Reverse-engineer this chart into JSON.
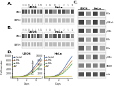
{
  "title_U2OS": "U2OS",
  "title_HeLa": "HeLa",
  "row_labels_A": [
    "ERK1",
    "GAPDH"
  ],
  "row_labels_B": [
    "ERK1",
    "GAPDH"
  ],
  "row_labels_C": [
    "IKK-a",
    "p-IKK-a/b",
    "p-IKKb",
    "IKKb",
    "IKK-e",
    "p-IKK-e",
    "GAPDH",
    "actin"
  ],
  "n_bands_A": 7,
  "n_bands_B": 7,
  "line_colors": [
    "#3060c0",
    "#e07820",
    "#30a030",
    "#d0b020"
  ],
  "legend_labels": [
    "si-Control",
    "si-IKKa",
    "si-IKKb",
    "EGF"
  ],
  "x_vals": [
    1,
    2,
    3,
    4,
    5,
    6,
    7
  ],
  "y_left_lines": [
    [
      200,
      300,
      500,
      1200,
      3000,
      6000,
      9000
    ],
    [
      200,
      280,
      450,
      1000,
      2400,
      4800,
      7500
    ],
    [
      200,
      260,
      380,
      800,
      1800,
      3500,
      5500
    ],
    [
      200,
      210,
      230,
      270,
      340,
      440,
      550
    ]
  ],
  "y_right_lines": [
    [
      200,
      320,
      550,
      1400,
      3500,
      7000,
      10000
    ],
    [
      200,
      290,
      480,
      1100,
      2700,
      5200,
      8000
    ],
    [
      200,
      270,
      400,
      900,
      2000,
      4000,
      6500
    ],
    [
      200,
      210,
      235,
      280,
      360,
      460,
      580
    ]
  ],
  "ytick_labels_left": [
    "0",
    "2000",
    "4000",
    "6000",
    "8000",
    "10000"
  ],
  "ytick_vals_left": [
    0,
    2000,
    4000,
    6000,
    8000,
    10000
  ],
  "xlabel": "Days",
  "ylabel_left": "Cell number",
  "bg_color": "#ffffff",
  "panel_bg": "#f5f5f5",
  "band_dark": "#505050",
  "band_mid": "#888888",
  "band_light": "#bbbbbb",
  "band_very_light": "#d8d8d8",
  "box_edge": "#aaaaaa",
  "bands_A_row0": [
    "#606060",
    "#606060",
    "#606060",
    "#606060",
    "#606060",
    "#606060",
    "#606060"
  ],
  "bands_A_row1": [
    "#909090",
    "#909090",
    "#909090",
    "#909090",
    "#909090",
    "#909090",
    "#909090"
  ],
  "c_col_headers": [
    "U2OS",
    "HeLa"
  ],
  "c_n_cols_per_group": 2,
  "c_band_patterns": [
    [
      "#404040",
      "#909090",
      "#404040",
      "#909090"
    ],
    [
      "#404040",
      "#909090",
      "#404040",
      "#909090"
    ],
    [
      "#404040",
      "#909090",
      "#404040",
      "#909090"
    ],
    [
      "#606060",
      "#aaaaaa",
      "#606060",
      "#aaaaaa"
    ],
    [
      "#606060",
      "#aaaaaa",
      "#606060",
      "#aaaaaa"
    ],
    [
      "#606060",
      "#aaaaaa",
      "#606060",
      "#aaaaaa"
    ],
    [
      "#808080",
      "#808080",
      "#808080",
      "#808080"
    ],
    [
      "#505050",
      "#505050",
      "#505050",
      "#505050"
    ]
  ]
}
